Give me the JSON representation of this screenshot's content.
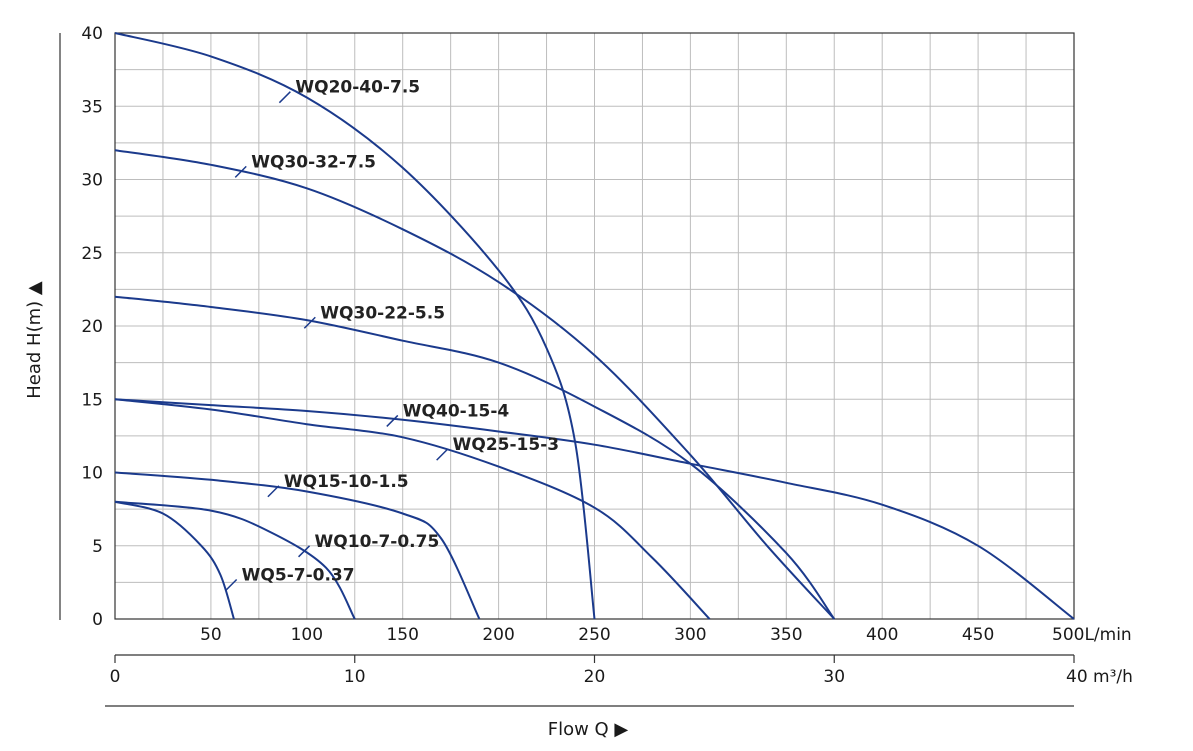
{
  "chart_data": {
    "type": "line",
    "y_axis": {
      "label": "Head H(m) ▲",
      "range": [
        0,
        40
      ],
      "ticks": [
        0,
        5,
        10,
        15,
        20,
        25,
        30,
        35,
        40
      ]
    },
    "x_axis_lpm": {
      "unit": "L/min",
      "range": [
        0,
        500
      ],
      "ticks": [
        50,
        100,
        150,
        200,
        250,
        300,
        350,
        400,
        450,
        500
      ],
      "tick_labels": [
        "50",
        "100",
        "150",
        "200",
        "250",
        "300",
        "350",
        "400",
        "450",
        "500L/min"
      ]
    },
    "x_axis_m3h": {
      "unit": "m³/h",
      "range": [
        0,
        40
      ],
      "ticks": [
        0,
        10,
        20,
        30,
        40
      ],
      "tick_labels": [
        "0",
        "10",
        "20",
        "30",
        "40 m³/h"
      ]
    },
    "x_title": "Flow Q ▶",
    "grid": true,
    "series_color": "#1b3a8c",
    "series": [
      {
        "name": "WQ20-40-7.5",
        "points": [
          [
            0,
            40
          ],
          [
            50,
            38.4
          ],
          [
            100,
            35.6
          ],
          [
            150,
            30.8
          ],
          [
            200,
            23.8
          ],
          [
            225,
            18.5
          ],
          [
            240,
            12
          ],
          [
            250,
            0
          ]
        ]
      },
      {
        "name": "WQ30-32-7.5",
        "points": [
          [
            0,
            32
          ],
          [
            50,
            31
          ],
          [
            100,
            29.4
          ],
          [
            150,
            26.6
          ],
          [
            200,
            23
          ],
          [
            250,
            18
          ],
          [
            300,
            11.2
          ],
          [
            340,
            5
          ],
          [
            375,
            0
          ]
        ]
      },
      {
        "name": "WQ30-22-5.5",
        "points": [
          [
            0,
            22
          ],
          [
            50,
            21.3
          ],
          [
            100,
            20.4
          ],
          [
            150,
            19
          ],
          [
            200,
            17.5
          ],
          [
            250,
            14.5
          ],
          [
            300,
            10.6
          ],
          [
            350,
            4.5
          ],
          [
            375,
            0
          ]
        ]
      },
      {
        "name": "WQ40-15-4",
        "points": [
          [
            0,
            15
          ],
          [
            50,
            14.6
          ],
          [
            100,
            14.2
          ],
          [
            150,
            13.6
          ],
          [
            200,
            12.8
          ],
          [
            250,
            11.9
          ],
          [
            300,
            10.6
          ],
          [
            350,
            9.3
          ],
          [
            400,
            7.8
          ],
          [
            450,
            5
          ],
          [
            500,
            0
          ]
        ]
      },
      {
        "name": "WQ25-15-3",
        "points": [
          [
            0,
            15
          ],
          [
            50,
            14.3
          ],
          [
            100,
            13.3
          ],
          [
            150,
            12.4
          ],
          [
            200,
            10.4
          ],
          [
            250,
            7.6
          ],
          [
            280,
            4.2
          ],
          [
            310,
            0
          ]
        ]
      },
      {
        "name": "WQ15-10-1.5",
        "points": [
          [
            0,
            10
          ],
          [
            50,
            9.5
          ],
          [
            100,
            8.7
          ],
          [
            150,
            7.2
          ],
          [
            170,
            5.5
          ],
          [
            190,
            0
          ]
        ]
      },
      {
        "name": "WQ10-7-0.75",
        "points": [
          [
            0,
            8
          ],
          [
            50,
            7.4
          ],
          [
            80,
            6
          ],
          [
            110,
            3.5
          ],
          [
            125,
            0
          ]
        ]
      },
      {
        "name": "WQ5-7-0.37",
        "points": [
          [
            0,
            8
          ],
          [
            25,
            7.2
          ],
          [
            45,
            5
          ],
          [
            55,
            3
          ],
          [
            62,
            0
          ]
        ]
      }
    ],
    "labels": [
      {
        "text": "WQ20-40-7.5",
        "x": 93,
        "y": 36.2
      },
      {
        "text": "WQ30-32-7.5",
        "x": 70,
        "y": 31.1
      },
      {
        "text": "WQ30-22-5.5",
        "x": 106,
        "y": 20.8
      },
      {
        "text": "WQ40-15-4",
        "x": 149,
        "y": 14.1
      },
      {
        "text": "WQ25-15-3",
        "x": 175,
        "y": 11.8
      },
      {
        "text": "WQ15-10-1.5",
        "x": 87,
        "y": 9.3
      },
      {
        "text": "WQ10-7-0.75",
        "x": 103,
        "y": 5.2
      },
      {
        "text": "WQ5-7-0.37",
        "x": 65,
        "y": 2.9
      }
    ]
  }
}
